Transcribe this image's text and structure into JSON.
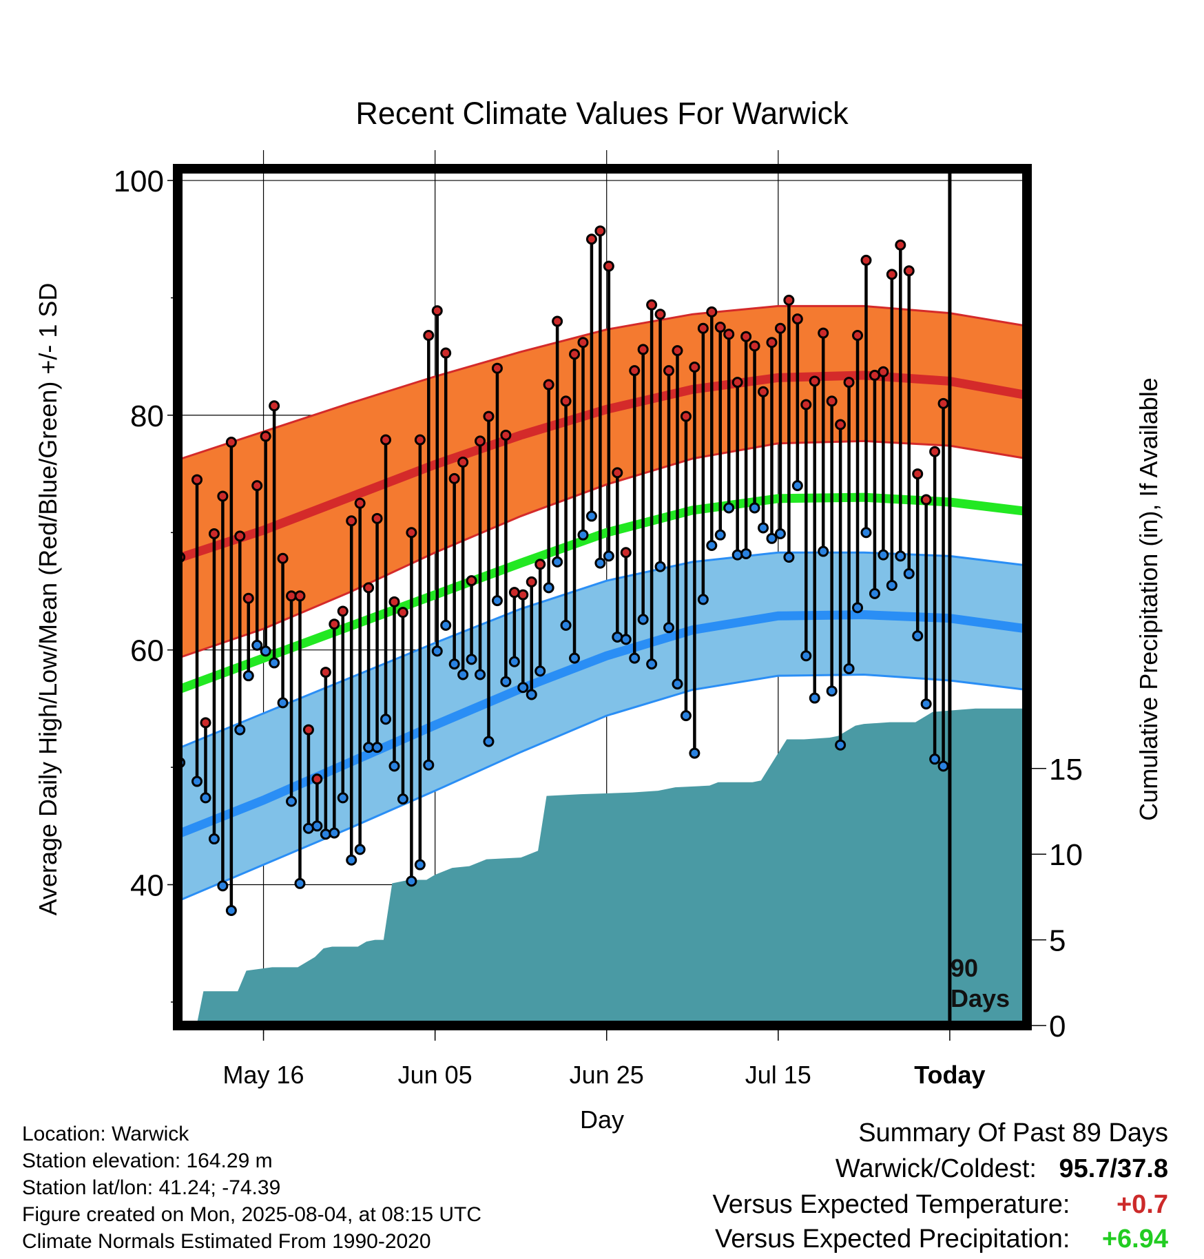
{
  "chart_data": {
    "type": "line",
    "title": "Recent Climate Values For Warwick",
    "xlabel": "Day",
    "ylabel": "Average Daily High/Low/Mean (Red/Blue/Green) +/- 1 SD",
    "y2label": "Cumulative Precipitation (in), If Available",
    "x_tick_labels": [
      "May 16",
      "Jun 05",
      "Jun 25",
      "Jul 15",
      "Today"
    ],
    "x_tick_day_index": [
      10,
      30,
      50,
      70,
      90
    ],
    "x_range_day_index": [
      0,
      99
    ],
    "today_marker_label": "90 Days",
    "y_ticks": [
      40,
      60,
      80,
      100
    ],
    "ylim": [
      28,
      101
    ],
    "y2_ticks": [
      0,
      5,
      10,
      15
    ],
    "y2lim": [
      0,
      50
    ],
    "grid": true,
    "colors": {
      "high_band": "#f47a30",
      "high_normal": "#d42a2a",
      "low_band": "#80c1e8",
      "low_normal": "#2a8ef5",
      "mean_normal": "#22e822",
      "precip": "#4a9aa4",
      "high_dot": "#cc2a2a",
      "low_dot": "#2a82e0"
    },
    "normals": {
      "day_index": [
        0,
        10,
        20,
        30,
        40,
        50,
        60,
        70,
        80,
        90,
        99
      ],
      "high": [
        67.8,
        70.2,
        73.0,
        75.8,
        78.3,
        80.5,
        82.2,
        83.2,
        83.4,
        82.9,
        81.7
      ],
      "high_sd_upper": [
        76.2,
        78.6,
        81.0,
        83.3,
        85.4,
        87.3,
        88.6,
        89.3,
        89.3,
        88.7,
        87.6
      ],
      "high_sd_lower": [
        59.3,
        61.8,
        64.9,
        68.3,
        71.4,
        74.1,
        76.3,
        77.6,
        77.8,
        77.4,
        76.3
      ],
      "mean": [
        56.6,
        59.3,
        62.0,
        64.7,
        67.4,
        70.0,
        71.9,
        72.9,
        73.0,
        72.6,
        71.8
      ],
      "low": [
        44.3,
        47.2,
        50.4,
        53.6,
        56.7,
        59.5,
        61.7,
        62.9,
        63.0,
        62.7,
        61.8
      ],
      "low_sd_upper": [
        51.6,
        54.6,
        57.6,
        60.6,
        63.5,
        65.9,
        67.5,
        68.3,
        68.3,
        68.0,
        67.2
      ],
      "low_sd_lower": [
        38.6,
        41.7,
        44.8,
        48.0,
        51.3,
        54.4,
        56.6,
        57.8,
        57.9,
        57.4,
        56.6
      ]
    },
    "series": [
      {
        "name": "High",
        "values": [
          67.9,
          null,
          74.5,
          53.8,
          69.9,
          73.1,
          77.7,
          69.7,
          64.4,
          74.0,
          78.2,
          80.8,
          67.8,
          64.6,
          64.6,
          53.2,
          49.0,
          58.1,
          62.2,
          63.3,
          71.0,
          72.5,
          65.3,
          71.2,
          77.9,
          64.1,
          63.2,
          70.0,
          77.9,
          86.8,
          88.9,
          85.3,
          74.6,
          76.0,
          65.9,
          77.8,
          79.9,
          84.0,
          78.3,
          64.9,
          64.7,
          65.8,
          67.3,
          82.6,
          88.0,
          81.2,
          85.2,
          86.2,
          95.0,
          95.7,
          92.7,
          75.1,
          68.3,
          83.8,
          85.6,
          89.4,
          88.6,
          83.8,
          85.5,
          79.9,
          84.1,
          87.4,
          88.8,
          87.5,
          86.9,
          82.8,
          86.7,
          85.9,
          82.0,
          86.2,
          87.4,
          89.8,
          88.2,
          80.9,
          82.9,
          87.0,
          81.2,
          79.2,
          82.8,
          86.8,
          93.2,
          83.4,
          83.7,
          92.0,
          94.5,
          92.3,
          75.0,
          72.8,
          76.9,
          81.0
        ],
        "color": "#cc2a2a"
      },
      {
        "name": "Low",
        "values": [
          50.4,
          null,
          48.8,
          47.4,
          43.9,
          39.9,
          37.8,
          53.2,
          57.8,
          60.4,
          59.9,
          58.9,
          55.5,
          47.1,
          40.1,
          44.8,
          45.0,
          44.3,
          44.4,
          47.4,
          42.1,
          43.0,
          51.7,
          51.7,
          54.1,
          50.1,
          47.3,
          40.3,
          41.7,
          50.2,
          59.9,
          62.1,
          58.8,
          57.9,
          59.2,
          57.9,
          52.2,
          64.2,
          57.3,
          59.0,
          56.8,
          56.2,
          58.2,
          65.3,
          67.5,
          62.1,
          59.3,
          69.8,
          71.4,
          67.4,
          68.0,
          61.1,
          60.9,
          59.3,
          62.6,
          58.8,
          67.1,
          61.9,
          57.1,
          54.4,
          51.2,
          64.3,
          68.9,
          69.8,
          72.1,
          68.1,
          68.2,
          72.1,
          70.4,
          69.5,
          69.9,
          67.9,
          74.0,
          59.5,
          55.9,
          68.4,
          56.5,
          51.9,
          58.4,
          63.6,
          70.0,
          64.8,
          68.1,
          65.5,
          68.0,
          66.5,
          61.2,
          55.4,
          50.7,
          50.1
        ],
        "color": "#2a82e0"
      }
    ],
    "precipitation": {
      "day_index": [
        0,
        2.2,
        3,
        7,
        8,
        11,
        14,
        16,
        17,
        18,
        21,
        22,
        23,
        24,
        25,
        27,
        29,
        30,
        32,
        34,
        36,
        40,
        42,
        43,
        47,
        53,
        56,
        58,
        62,
        63,
        67,
        68,
        71,
        73,
        76,
        77,
        79,
        80,
        83,
        86,
        88,
        93,
        94,
        99
      ],
      "cumulative_in": [
        0,
        0,
        2.0,
        2.0,
        3.2,
        3.4,
        3.4,
        4.0,
        4.5,
        4.6,
        4.6,
        4.9,
        5.0,
        5.0,
        8.3,
        8.5,
        8.5,
        8.8,
        9.2,
        9.3,
        9.7,
        9.8,
        10.2,
        13.4,
        13.5,
        13.6,
        13.7,
        13.9,
        14.0,
        14.2,
        14.2,
        14.3,
        16.7,
        16.7,
        16.8,
        16.9,
        17.5,
        17.6,
        17.7,
        17.7,
        18.3,
        18.5,
        18.5,
        18.5
      ]
    }
  },
  "footer": {
    "location": "Location: Warwick",
    "elevation": "Station elevation: 164.29 m",
    "latlon": "Station lat/lon: 41.24; -74.39",
    "created": "Figure created on Mon, 2025-08-04, at 08:15 UTC",
    "normals": "Climate Normals Estimated From 1990-2020"
  },
  "summary": {
    "heading": "Summary Of Past 89 Days",
    "warmest_label": "Warwick/Coldest:",
    "warmest_value": "95.7/37.8",
    "temp_label": "Versus Expected Temperature:",
    "temp_value": "+0.7",
    "temp_color": "#cc2a2a",
    "precip_label": "Versus Expected Precipitation:",
    "precip_value": "+6.94",
    "precip_color": "#22cc22"
  }
}
